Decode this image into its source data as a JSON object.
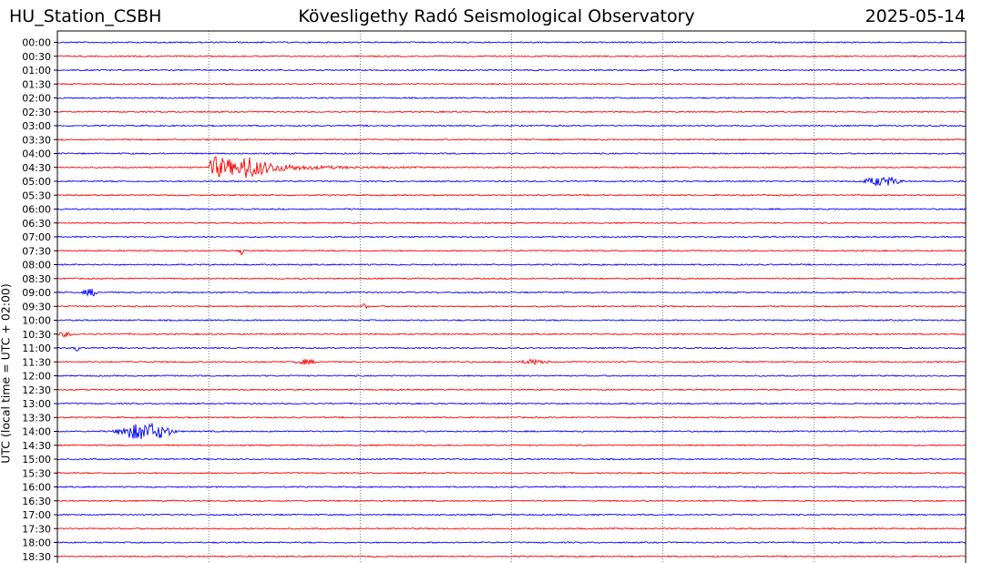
{
  "header": {
    "station": "HU_Station_CSBH",
    "observatory": "Kövesligethy Radó Seismological Observatory",
    "date": "2025-05-14"
  },
  "chart_data": {
    "type": "line",
    "title": "Kövesligethy Radó Seismological Observatory",
    "ylabel": "UTC (local time = UTC + 02:00)",
    "y_tick_labels": [
      "00:00",
      "00:30",
      "01:00",
      "01:30",
      "02:00",
      "02:30",
      "03:00",
      "03:30",
      "04:00",
      "04:30",
      "05:00",
      "05:30",
      "06:00",
      "06:30",
      "07:00",
      "07:30",
      "08:00",
      "08:30",
      "09:00",
      "09:30",
      "10:00",
      "10:30",
      "11:00",
      "11:30",
      "12:00",
      "12:30",
      "13:00",
      "13:30",
      "14:00",
      "14:30",
      "15:00",
      "15:30",
      "16:00",
      "16:30",
      "17:00",
      "17:30",
      "18:00",
      "18:30"
    ],
    "trace_colors": [
      "#0000ff",
      "#ff0000"
    ],
    "x_range_minutes": [
      0,
      30
    ],
    "x_grid_minutes": [
      5,
      10,
      15,
      20,
      25
    ],
    "grid": "vertical dotted",
    "events": [
      {
        "row": "04:30",
        "start_minute": 5.0,
        "end_minute": 12.0,
        "peak_amplitude": 1.0
      },
      {
        "row": "05:00",
        "start_minute": 26.5,
        "end_minute": 28.0,
        "peak_amplitude": 0.15
      },
      {
        "row": "14:00",
        "start_minute": 1.8,
        "end_minute": 4.0,
        "peak_amplitude": 0.3
      },
      {
        "row": "09:00",
        "start_minute": 0.8,
        "end_minute": 1.4,
        "peak_amplitude": 0.12
      },
      {
        "row": "11:00",
        "start_minute": 0.5,
        "end_minute": 0.8,
        "peak_amplitude": 0.1
      },
      {
        "row": "11:30",
        "start_minute": 7.8,
        "end_minute": 8.6,
        "peak_amplitude": 0.08
      },
      {
        "row": "11:30",
        "start_minute": 15.2,
        "end_minute": 16.3,
        "peak_amplitude": 0.08
      },
      {
        "row": "07:30",
        "start_minute": 6.0,
        "end_minute": 6.2,
        "peak_amplitude": 0.15
      },
      {
        "row": "09:30",
        "start_minute": 10.0,
        "end_minute": 10.3,
        "peak_amplitude": 0.08
      },
      {
        "row": "10:30",
        "start_minute": 0.0,
        "end_minute": 0.5,
        "peak_amplitude": 0.08
      }
    ]
  }
}
